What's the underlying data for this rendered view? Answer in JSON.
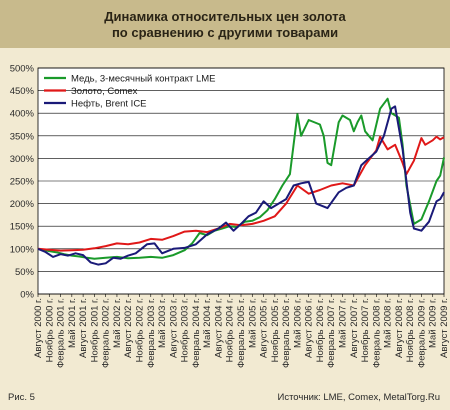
{
  "header": {
    "title_line1": "Динамика относительных цен золота",
    "title_line2": "по сравнению с другими товарами"
  },
  "footer": {
    "figure_label": "Рис. 5",
    "source": "Источник: LME, Comex, MetalTorg.Ru"
  },
  "colors": {
    "background": "#f2ead2",
    "title_bar": "#c8ba8c",
    "plot_area": "#ffffff",
    "grid": "#000000"
  },
  "chart_data": {
    "type": "line",
    "title": "Динамика относительных цен золота по сравнению с другими товарами",
    "xlabel": "",
    "ylabel": "",
    "ylim": [
      0,
      500
    ],
    "ytick_step": 50,
    "y_unit": "%",
    "grid": true,
    "legend_position": "top-left",
    "x_start": "2000-08",
    "x_end": "2009-08",
    "x_ticks": [
      "Август 2000 г.",
      "Ноябрь 2000 г.",
      "Февраль 2001 г.",
      "Май 2001 г.",
      "Август 2001 г.",
      "Ноябрь 2001 г.",
      "Февраль 2002 г.",
      "Май 2002 г.",
      "Август 2002 г.",
      "Ноябрь 2002 г.",
      "Февраль 2003 г.",
      "Май 2003 г.",
      "Август 2003 г.",
      "Ноябрь 2003 г.",
      "Февраль 2004 г.",
      "Май 2004 г.",
      "Август 2004 г.",
      "Ноябрь 2004 г.",
      "Февраль 2005 г.",
      "Май 2005 г.",
      "Август 2005 г.",
      "Ноябрь 2005 г.",
      "Февраль 2006 г.",
      "Май 2006 г.",
      "Август 2006 г.",
      "Ноябрь 2006 г.",
      "Февраль 2007 г.",
      "Май 2007 г.",
      "Август 2007 г.",
      "Ноябрь 2007 г.",
      "Февраль 2008 г.",
      "Май 2008 г.",
      "Август 2008 г.",
      "Ноябрь 2008 г.",
      "Февраль 2009 г.",
      "Май 2009 г.",
      "Август 2009 г."
    ],
    "series": [
      {
        "name": "Медь, 3-месячный контракт LME",
        "color": "#1a9a2a",
        "points": [
          [
            "2000-08",
            100
          ],
          [
            "2000-11",
            95
          ],
          [
            "2001-01",
            92
          ],
          [
            "2001-03",
            88
          ],
          [
            "2001-05",
            85
          ],
          [
            "2001-07",
            83
          ],
          [
            "2001-09",
            80
          ],
          [
            "2001-11",
            78
          ],
          [
            "2002-02",
            80
          ],
          [
            "2002-05",
            82
          ],
          [
            "2002-08",
            79
          ],
          [
            "2002-11",
            80
          ],
          [
            "2003-02",
            82
          ],
          [
            "2003-05",
            80
          ],
          [
            "2003-08",
            86
          ],
          [
            "2003-11",
            97
          ],
          [
            "2004-01",
            112
          ],
          [
            "2004-03",
            135
          ],
          [
            "2004-05",
            130
          ],
          [
            "2004-07",
            140
          ],
          [
            "2004-09",
            145
          ],
          [
            "2004-11",
            150
          ],
          [
            "2005-01",
            148
          ],
          [
            "2005-03",
            160
          ],
          [
            "2005-05",
            162
          ],
          [
            "2005-07",
            170
          ],
          [
            "2005-09",
            185
          ],
          [
            "2005-11",
            210
          ],
          [
            "2006-01",
            240
          ],
          [
            "2006-03",
            265
          ],
          [
            "2006-05",
            398
          ],
          [
            "2006-06",
            350
          ],
          [
            "2006-08",
            385
          ],
          [
            "2006-11",
            375
          ],
          [
            "2006-12",
            350
          ],
          [
            "2007-01",
            290
          ],
          [
            "2007-02",
            285
          ],
          [
            "2007-04",
            380
          ],
          [
            "2007-05",
            395
          ],
          [
            "2007-07",
            385
          ],
          [
            "2007-08",
            360
          ],
          [
            "2007-09",
            380
          ],
          [
            "2007-10",
            395
          ],
          [
            "2007-11",
            360
          ],
          [
            "2008-01",
            340
          ],
          [
            "2008-03",
            410
          ],
          [
            "2008-05",
            432
          ],
          [
            "2008-06",
            400
          ],
          [
            "2008-08",
            390
          ],
          [
            "2008-09",
            330
          ],
          [
            "2008-10",
            240
          ],
          [
            "2008-12",
            155
          ],
          [
            "2009-02",
            165
          ],
          [
            "2009-04",
            205
          ],
          [
            "2009-06",
            250
          ],
          [
            "2009-07",
            262
          ],
          [
            "2009-08",
            302
          ]
        ]
      },
      {
        "name": "Золото, Comex",
        "color": "#e01818",
        "points": [
          [
            "2000-08",
            100
          ],
          [
            "2000-11",
            98
          ],
          [
            "2001-02",
            96
          ],
          [
            "2001-05",
            97
          ],
          [
            "2001-08",
            98
          ],
          [
            "2001-11",
            101
          ],
          [
            "2002-02",
            106
          ],
          [
            "2002-05",
            112
          ],
          [
            "2002-08",
            110
          ],
          [
            "2002-11",
            114
          ],
          [
            "2003-02",
            122
          ],
          [
            "2003-05",
            120
          ],
          [
            "2003-08",
            128
          ],
          [
            "2003-11",
            138
          ],
          [
            "2004-02",
            140
          ],
          [
            "2004-05",
            137
          ],
          [
            "2004-08",
            145
          ],
          [
            "2004-11",
            155
          ],
          [
            "2005-02",
            152
          ],
          [
            "2005-05",
            155
          ],
          [
            "2005-08",
            162
          ],
          [
            "2005-11",
            172
          ],
          [
            "2006-02",
            200
          ],
          [
            "2006-05",
            240
          ],
          [
            "2006-08",
            222
          ],
          [
            "2006-11",
            230
          ],
          [
            "2007-02",
            240
          ],
          [
            "2007-05",
            245
          ],
          [
            "2007-08",
            240
          ],
          [
            "2007-11",
            285
          ],
          [
            "2008-02",
            318
          ],
          [
            "2008-03",
            348
          ],
          [
            "2008-05",
            320
          ],
          [
            "2008-07",
            330
          ],
          [
            "2008-09",
            290
          ],
          [
            "2008-10",
            265
          ],
          [
            "2008-12",
            295
          ],
          [
            "2009-02",
            345
          ],
          [
            "2009-03",
            330
          ],
          [
            "2009-05",
            340
          ],
          [
            "2009-06",
            348
          ],
          [
            "2009-07",
            342
          ],
          [
            "2009-08",
            347
          ]
        ]
      },
      {
        "name": "Нефть, Brent ICE",
        "color": "#1a1a78",
        "points": [
          [
            "2000-08",
            100
          ],
          [
            "2000-10",
            93
          ],
          [
            "2000-12",
            82
          ],
          [
            "2001-02",
            88
          ],
          [
            "2001-04",
            85
          ],
          [
            "2001-06",
            90
          ],
          [
            "2001-08",
            86
          ],
          [
            "2001-10",
            70
          ],
          [
            "2001-12",
            65
          ],
          [
            "2002-02",
            68
          ],
          [
            "2002-04",
            80
          ],
          [
            "2002-06",
            78
          ],
          [
            "2002-08",
            85
          ],
          [
            "2002-10",
            90
          ],
          [
            "2003-01",
            110
          ],
          [
            "2003-03",
            112
          ],
          [
            "2003-05",
            90
          ],
          [
            "2003-08",
            100
          ],
          [
            "2003-11",
            102
          ],
          [
            "2004-02",
            110
          ],
          [
            "2004-05",
            132
          ],
          [
            "2004-08",
            145
          ],
          [
            "2004-10",
            158
          ],
          [
            "2004-12",
            140
          ],
          [
            "2005-02",
            155
          ],
          [
            "2005-04",
            172
          ],
          [
            "2005-06",
            180
          ],
          [
            "2005-08",
            205
          ],
          [
            "2005-10",
            190
          ],
          [
            "2005-12",
            200
          ],
          [
            "2006-02",
            210
          ],
          [
            "2006-04",
            240
          ],
          [
            "2006-06",
            245
          ],
          [
            "2006-08",
            248
          ],
          [
            "2006-10",
            200
          ],
          [
            "2007-01",
            190
          ],
          [
            "2007-04",
            225
          ],
          [
            "2007-06",
            235
          ],
          [
            "2007-08",
            240
          ],
          [
            "2007-10",
            285
          ],
          [
            "2007-12",
            300
          ],
          [
            "2008-02",
            315
          ],
          [
            "2008-04",
            350
          ],
          [
            "2008-06",
            410
          ],
          [
            "2008-07",
            415
          ],
          [
            "2008-09",
            320
          ],
          [
            "2008-11",
            180
          ],
          [
            "2008-12",
            145
          ],
          [
            "2009-02",
            140
          ],
          [
            "2009-04",
            160
          ],
          [
            "2009-06",
            205
          ],
          [
            "2009-07",
            210
          ],
          [
            "2009-08",
            225
          ]
        ]
      }
    ]
  }
}
